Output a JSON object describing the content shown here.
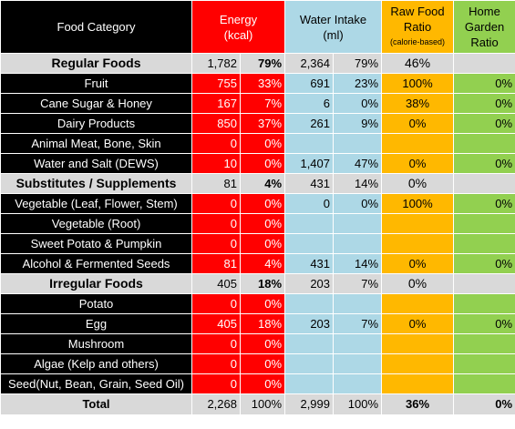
{
  "headers": {
    "category": "Food Category",
    "energy_line1": "Energy",
    "energy_line2": "(kcal)",
    "water_line1": "Water Intake",
    "water_line2": "(ml)",
    "raw_line1": "Raw Food",
    "raw_line2": "Ratio",
    "raw_line3": "(calorie-based)",
    "home_line1": "Home",
    "home_line2": "Garden",
    "home_line3": "Ratio"
  },
  "rows": [
    {
      "type": "group",
      "cat": "Regular Foods",
      "ekcal": "1,782",
      "epct": "79%",
      "wml": "2,364",
      "wpct": "79%",
      "raw": "46%",
      "home": ""
    },
    {
      "type": "item",
      "cat": "Fruit",
      "ekcal": "755",
      "epct": "33%",
      "wml": "691",
      "wpct": "23%",
      "raw": "100%",
      "home": "0%"
    },
    {
      "type": "item",
      "cat": "Cane Sugar & Honey",
      "ekcal": "167",
      "epct": "7%",
      "wml": "6",
      "wpct": "0%",
      "raw": "38%",
      "home": "0%"
    },
    {
      "type": "item",
      "cat": "Dairy Products",
      "ekcal": "850",
      "epct": "37%",
      "wml": "261",
      "wpct": "9%",
      "raw": "0%",
      "home": "0%"
    },
    {
      "type": "item",
      "cat": "Animal Meat, Bone, Skin",
      "ekcal": "0",
      "epct": "0%",
      "wml": "",
      "wpct": "",
      "raw": "",
      "home": ""
    },
    {
      "type": "item",
      "cat": "Water and Salt (DEWS)",
      "ekcal": "10",
      "epct": "0%",
      "wml": "1,407",
      "wpct": "47%",
      "raw": "0%",
      "home": "0%"
    },
    {
      "type": "group",
      "cat": "Substitutes / Supplements",
      "ekcal": "81",
      "epct": "4%",
      "wml": "431",
      "wpct": "14%",
      "raw": "0%",
      "home": ""
    },
    {
      "type": "item",
      "cat": "Vegetable (Leaf, Flower, Stem)",
      "ekcal": "0",
      "epct": "0%",
      "wml": "0",
      "wpct": "0%",
      "raw": "100%",
      "home": "0%"
    },
    {
      "type": "item",
      "cat": "Vegetable (Root)",
      "ekcal": "0",
      "epct": "0%",
      "wml": "",
      "wpct": "",
      "raw": "",
      "home": ""
    },
    {
      "type": "item",
      "cat": "Sweet Potato & Pumpkin",
      "ekcal": "0",
      "epct": "0%",
      "wml": "",
      "wpct": "",
      "raw": "",
      "home": ""
    },
    {
      "type": "item",
      "cat": "Alcohol & Fermented Seeds",
      "ekcal": "81",
      "epct": "4%",
      "wml": "431",
      "wpct": "14%",
      "raw": "0%",
      "home": "0%"
    },
    {
      "type": "group",
      "cat": "Irregular Foods",
      "ekcal": "405",
      "epct": "18%",
      "wml": "203",
      "wpct": "7%",
      "raw": "0%",
      "home": ""
    },
    {
      "type": "item",
      "cat": "Potato",
      "ekcal": "0",
      "epct": "0%",
      "wml": "",
      "wpct": "",
      "raw": "",
      "home": ""
    },
    {
      "type": "item",
      "cat": "Egg",
      "ekcal": "405",
      "epct": "18%",
      "wml": "203",
      "wpct": "7%",
      "raw": "0%",
      "home": "0%"
    },
    {
      "type": "item",
      "cat": "Mushroom",
      "ekcal": "0",
      "epct": "0%",
      "wml": "",
      "wpct": "",
      "raw": "",
      "home": ""
    },
    {
      "type": "item",
      "cat": "Algae (Kelp and others)",
      "ekcal": "0",
      "epct": "0%",
      "wml": "",
      "wpct": "",
      "raw": "",
      "home": ""
    },
    {
      "type": "item",
      "cat": "Seed(Nut, Bean, Grain, Seed Oil)",
      "ekcal": "0",
      "epct": "0%",
      "wml": "",
      "wpct": "",
      "raw": "",
      "home": ""
    },
    {
      "type": "total",
      "cat": "Total",
      "ekcal": "2,268",
      "epct": "100%",
      "wml": "2,999",
      "wpct": "100%",
      "raw": "36%",
      "home": "0%"
    }
  ],
  "colors": {
    "category": "#000000",
    "energy": "#ff0000",
    "water": "#add8e6",
    "raw": "#ffb800",
    "home": "#92d050",
    "group_row": "#d9d9d9"
  }
}
